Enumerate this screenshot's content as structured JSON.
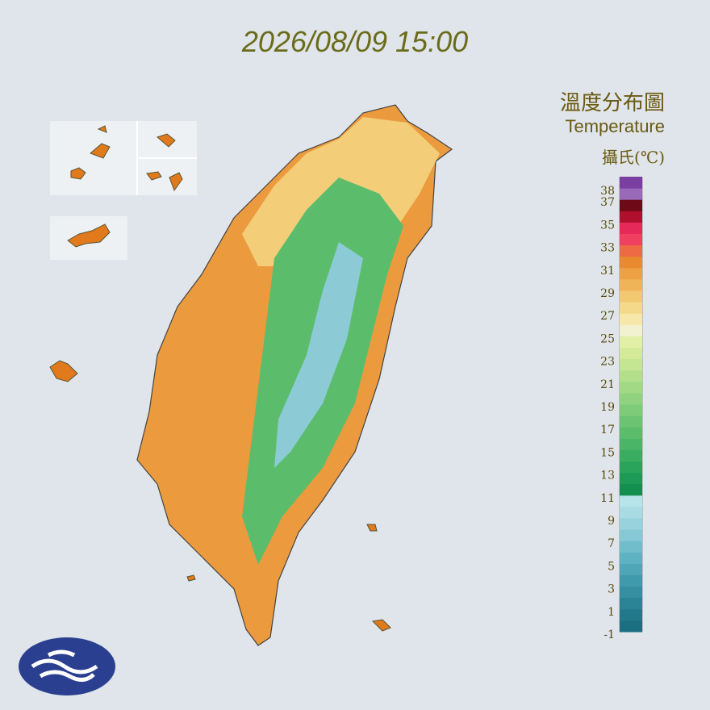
{
  "title": "2026/08/09 15:00",
  "legend": {
    "title": "溫度分布圖",
    "subtitle": "Temperature",
    "unit": "攝氏(℃)",
    "ticks": [
      38,
      37,
      35,
      33,
      31,
      29,
      27,
      25,
      23,
      21,
      19,
      17,
      15,
      13,
      11,
      9,
      7,
      5,
      3,
      1,
      -1
    ],
    "bands": [
      {
        "value": -1,
        "color": "#1b6f80"
      },
      {
        "value": 0,
        "color": "#22798a"
      },
      {
        "value": 1,
        "color": "#2b8496"
      },
      {
        "value": 2,
        "color": "#358fa1"
      },
      {
        "value": 3,
        "color": "#3f9aab"
      },
      {
        "value": 4,
        "color": "#4ea6b6"
      },
      {
        "value": 5,
        "color": "#5fb2c1"
      },
      {
        "value": 6,
        "color": "#72bdcb"
      },
      {
        "value": 7,
        "color": "#86c8d4"
      },
      {
        "value": 8,
        "color": "#98d2dd"
      },
      {
        "value": 9,
        "color": "#a8dbe4"
      },
      {
        "value": 10,
        "color": "#b7e3ea"
      },
      {
        "value": 11,
        "color": "#139050"
      },
      {
        "value": 12,
        "color": "#1d9a55"
      },
      {
        "value": 13,
        "color": "#2ba45b"
      },
      {
        "value": 14,
        "color": "#3aad60"
      },
      {
        "value": 15,
        "color": "#4ab566"
      },
      {
        "value": 16,
        "color": "#5bbd6c"
      },
      {
        "value": 17,
        "color": "#6cc473"
      },
      {
        "value": 18,
        "color": "#7ecb79"
      },
      {
        "value": 19,
        "color": "#90d27f"
      },
      {
        "value": 20,
        "color": "#a2d985"
      },
      {
        "value": 21,
        "color": "#b3df8b"
      },
      {
        "value": 22,
        "color": "#c4e591"
      },
      {
        "value": 23,
        "color": "#d3ea98"
      },
      {
        "value": 24,
        "color": "#e2efa6"
      },
      {
        "value": 25,
        "color": "#f2f1d0"
      },
      {
        "value": 26,
        "color": "#f6e8a8"
      },
      {
        "value": 27,
        "color": "#f5d98a"
      },
      {
        "value": 28,
        "color": "#f2c870"
      },
      {
        "value": 29,
        "color": "#f0b458"
      },
      {
        "value": 30,
        "color": "#eda044"
      },
      {
        "value": 31,
        "color": "#e98a30"
      },
      {
        "value": 32,
        "color": "#ee6a45"
      },
      {
        "value": 33,
        "color": "#f04060"
      },
      {
        "value": 34,
        "color": "#e52a5a"
      },
      {
        "value": 35,
        "color": "#b0102e"
      },
      {
        "value": 36,
        "color": "#6e0a18"
      },
      {
        "value": 37,
        "color": "#9a6ab8"
      },
      {
        "value": 38,
        "color": "#7a3fa0"
      }
    ]
  }
}
